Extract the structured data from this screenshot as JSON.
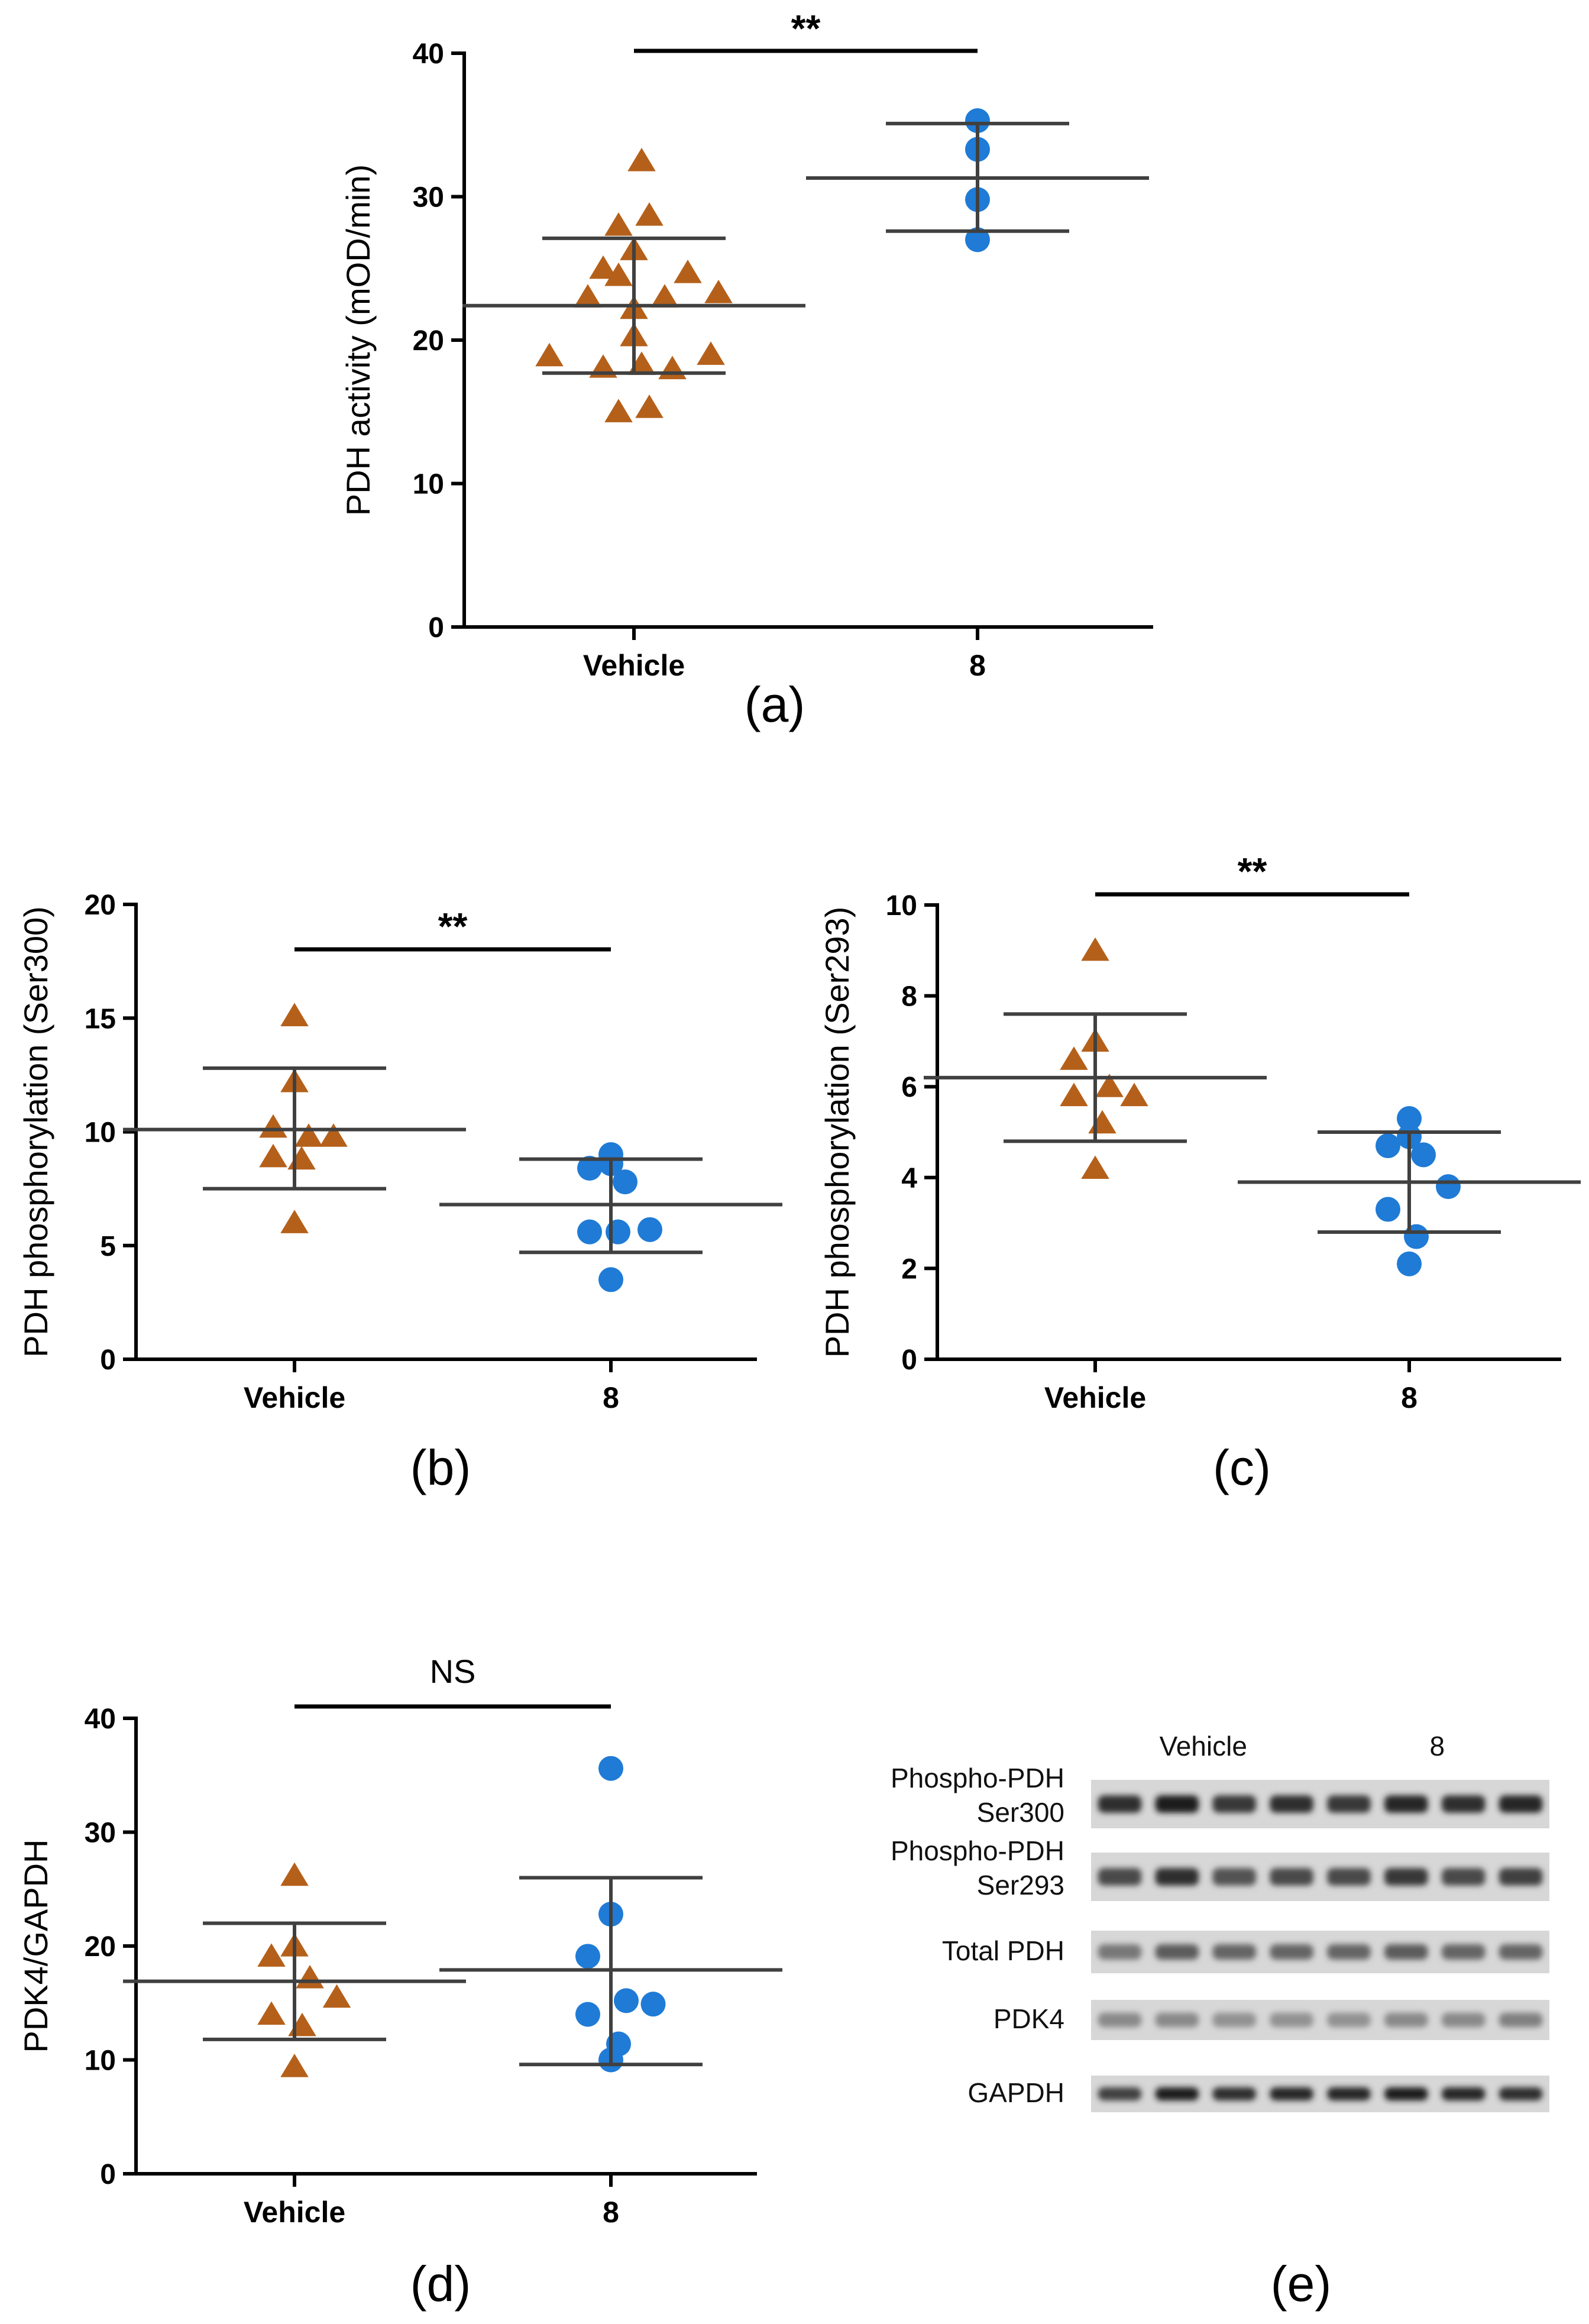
{
  "colors": {
    "vehicle": "#B5601A",
    "compound": "#1F7BD6",
    "axis": "#000000",
    "error": "#404040"
  },
  "chart_data": [
    {
      "id": "a",
      "type": "scatter",
      "panel_label": "(a)",
      "ylabel": "PDH activity (mOD/min)",
      "ylim": [
        0,
        40
      ],
      "yticks": [
        0,
        10,
        20,
        30,
        40
      ],
      "categories": [
        "Vehicle",
        "8"
      ],
      "series": [
        {
          "name": "Vehicle",
          "marker": "triangle",
          "values": [
            32.5,
            28.7,
            28.0,
            26.3,
            25.0,
            24.7,
            24.5,
            23.3,
            23.0,
            23.0,
            22.2,
            20.3,
            19.0,
            18.9,
            18.3,
            18.1,
            18.0,
            15.3,
            15.0
          ],
          "mean": 22.4,
          "sd_low": 17.7,
          "sd_high": 27.1
        },
        {
          "name": "8",
          "marker": "circle",
          "values": [
            35.3,
            33.3,
            29.8,
            27.0
          ],
          "mean": 31.3,
          "sd_low": 27.6,
          "sd_high": 35.1
        }
      ],
      "significance": "**"
    },
    {
      "id": "b",
      "type": "scatter",
      "panel_label": "(b)",
      "ylabel": "PDH phosphorylation (Ser300)",
      "ylim": [
        0,
        20
      ],
      "yticks": [
        0,
        5,
        10,
        15,
        20
      ],
      "categories": [
        "Vehicle",
        "8"
      ],
      "series": [
        {
          "name": "Vehicle",
          "marker": "triangle",
          "values": [
            15.1,
            12.2,
            10.2,
            9.8,
            9.8,
            8.9,
            8.8,
            6.0
          ],
          "mean": 10.1,
          "sd_low": 7.5,
          "sd_high": 12.8
        },
        {
          "name": "8",
          "marker": "circle",
          "values": [
            9.0,
            8.6,
            8.4,
            7.8,
            5.7,
            5.6,
            5.6,
            3.5
          ],
          "mean": 6.8,
          "sd_low": 4.7,
          "sd_high": 8.8
        }
      ],
      "significance": "**"
    },
    {
      "id": "c",
      "type": "scatter",
      "panel_label": "(c)",
      "ylabel": "PDH phosphorylation (Ser293)",
      "ylim": [
        0,
        10
      ],
      "yticks": [
        0,
        2,
        4,
        6,
        8,
        10
      ],
      "categories": [
        "Vehicle",
        "8"
      ],
      "series": [
        {
          "name": "Vehicle",
          "marker": "triangle",
          "values": [
            9.0,
            7.0,
            6.6,
            6.0,
            5.8,
            5.8,
            5.2,
            4.2
          ],
          "mean": 6.2,
          "sd_low": 4.8,
          "sd_high": 7.6
        },
        {
          "name": "8",
          "marker": "circle",
          "values": [
            5.3,
            4.9,
            4.7,
            4.5,
            3.8,
            3.3,
            2.7,
            2.1
          ],
          "mean": 3.9,
          "sd_low": 2.8,
          "sd_high": 5.0
        }
      ],
      "significance": "**"
    },
    {
      "id": "d",
      "type": "scatter",
      "panel_label": "(d)",
      "ylabel": "PDK4/GAPDH",
      "ylim": [
        0,
        40
      ],
      "yticks": [
        0,
        10,
        20,
        30,
        40
      ],
      "categories": [
        "Vehicle",
        "8"
      ],
      "series": [
        {
          "name": "Vehicle",
          "marker": "triangle",
          "values": [
            26.2,
            20.0,
            19.1,
            17.2,
            15.5,
            14.0,
            13.0,
            9.4
          ],
          "mean": 16.9,
          "sd_low": 11.8,
          "sd_high": 22.0
        },
        {
          "name": "8",
          "marker": "circle",
          "values": [
            35.6,
            22.8,
            19.1,
            15.2,
            14.9,
            14.0,
            11.4,
            10.0
          ],
          "mean": 17.9,
          "sd_low": 9.6,
          "sd_high": 26.0
        }
      ],
      "significance": "NS"
    }
  ],
  "blot": {
    "panel_label": "(e)",
    "groups": [
      "Vehicle",
      "8"
    ],
    "rows": [
      {
        "label_lines": [
          "Phospho-PDH",
          "Ser300"
        ],
        "intensities": [
          0.85,
          0.95,
          0.8,
          0.85,
          0.8,
          0.9,
          0.85,
          0.9
        ]
      },
      {
        "label_lines": [
          "Phospho-PDH",
          "Ser293"
        ],
        "intensities": [
          0.7,
          0.85,
          0.65,
          0.7,
          0.7,
          0.8,
          0.7,
          0.75
        ]
      },
      {
        "label_lines": [
          "Total PDH"
        ],
        "intensities": [
          0.45,
          0.6,
          0.55,
          0.55,
          0.55,
          0.6,
          0.55,
          0.55
        ]
      },
      {
        "label_lines": [
          "PDK4"
        ],
        "intensities": [
          0.35,
          0.35,
          0.3,
          0.3,
          0.3,
          0.35,
          0.35,
          0.4
        ]
      },
      {
        "label_lines": [
          "GAPDH"
        ],
        "intensities": [
          0.75,
          0.95,
          0.85,
          0.9,
          0.9,
          0.95,
          0.9,
          0.85
        ]
      }
    ]
  }
}
